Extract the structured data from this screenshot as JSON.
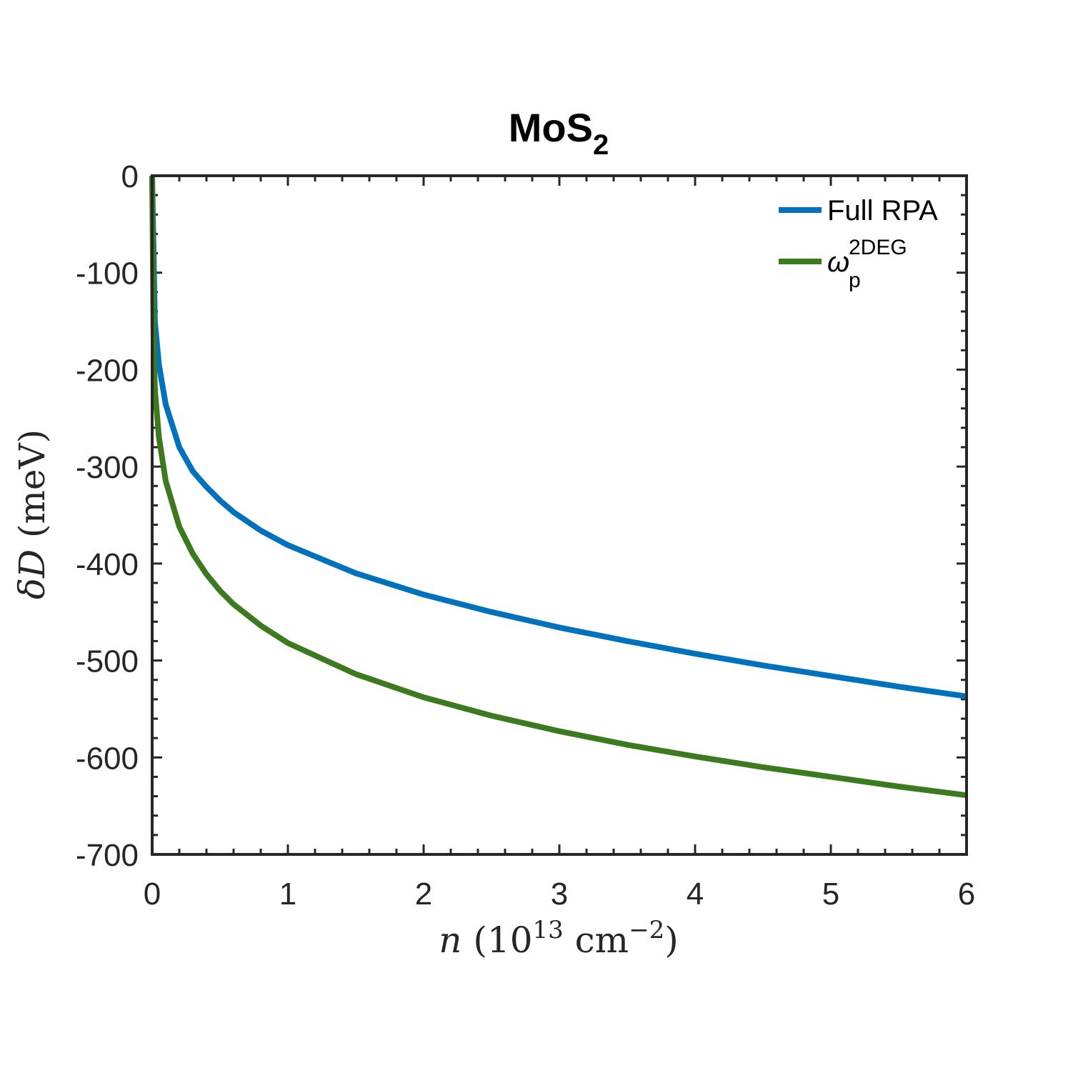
{
  "chart_data": {
    "type": "line",
    "title": "MoS",
    "title_subscript": "2",
    "xlabel": {
      "var": "n",
      "open": "(10",
      "exp": "13",
      "unit": " cm",
      "unit_exp": "−2",
      "close": ")"
    },
    "ylabel": {
      "prefix": "δ",
      "symbol": "D",
      "unit": " (meV)"
    },
    "xlim": [
      0,
      6
    ],
    "ylim": [
      -700,
      0
    ],
    "xticks": [
      0,
      1,
      2,
      3,
      4,
      5,
      6
    ],
    "xtick_labels": [
      "0",
      "1",
      "2",
      "3",
      "4",
      "5",
      "6"
    ],
    "yticks": [
      0,
      -100,
      -200,
      -300,
      -400,
      -500,
      -600,
      -700
    ],
    "ytick_labels": [
      "0",
      "-100",
      "-200",
      "-300",
      "-400",
      "-500",
      "-600",
      "-700"
    ],
    "legend_position": "top-right",
    "series": [
      {
        "name": "Full RPA",
        "color": "#0072BD",
        "x": [
          0,
          0.02,
          0.05,
          0.1,
          0.2,
          0.3,
          0.4,
          0.5,
          0.6,
          0.8,
          1.0,
          1.5,
          2.0,
          2.5,
          3.0,
          3.5,
          4.0,
          4.5,
          5.0,
          5.5,
          6.0
        ],
        "y": [
          0,
          -150,
          -195,
          -236,
          -280,
          -305,
          -321,
          -335,
          -347,
          -366,
          -381,
          -410,
          -432,
          -450,
          -466,
          -480,
          -493,
          -505,
          -516,
          -527,
          -537
        ]
      },
      {
        "name": "ω",
        "name_sup": "2DEG",
        "name_sub": "p",
        "color": "#3D7A1F",
        "x": [
          0,
          0.01,
          0.02,
          0.05,
          0.1,
          0.2,
          0.3,
          0.4,
          0.5,
          0.6,
          0.8,
          1.0,
          1.5,
          2.0,
          2.5,
          3.0,
          3.5,
          4.0,
          4.5,
          5.0,
          5.5,
          6.0
        ],
        "y": [
          0,
          -165,
          -220,
          -270,
          -315,
          -362,
          -390,
          -411,
          -428,
          -442,
          -464,
          -482,
          -514,
          -538,
          -557,
          -573,
          -587,
          -599,
          -610,
          -620,
          -630,
          -639
        ]
      }
    ]
  }
}
